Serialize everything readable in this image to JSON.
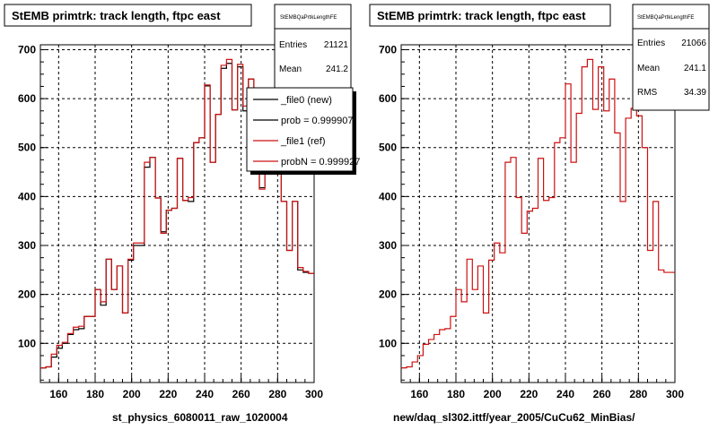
{
  "colors": {
    "ref": "#cc1111",
    "new": "#000000",
    "grid": "#000000"
  },
  "plots": [
    {
      "title": "StEMB primtrk: track length, ftpc east",
      "stats_name": "StEMBQaPrtkLengthFE",
      "stats": [
        {
          "label": "Entries",
          "value": "21121"
        },
        {
          "label": "Mean",
          "value": "241.2"
        }
      ],
      "xlabel": "st_physics_6080011_raw_1020004",
      "legend": [
        {
          "label": "_file0 (new)",
          "color": "#000000"
        },
        {
          "label": "prob = 0.999907",
          "color": "#000000"
        },
        {
          "label": "_file1 (ref)",
          "color": "#cc1111"
        },
        {
          "label": "probN = 0.999927",
          "color": "#cc1111"
        }
      ]
    },
    {
      "title": "StEMB primtrk: track length, ftpc east",
      "stats_name": "StEMBQaPrtkLengthFE",
      "stats": [
        {
          "label": "Entries",
          "value": "21066"
        },
        {
          "label": "Mean",
          "value": "241.1"
        },
        {
          "label": "RMS",
          "value": "34.39"
        }
      ],
      "xlabel": "new/daq_sl302.ittf/year_2005/CuCu62_MinBias/",
      "legend": []
    }
  ],
  "chart_data": [
    {
      "type": "step",
      "title": "StEMB primtrk: track length, ftpc east",
      "xlabel": "st_physics_6080011_raw_1020004",
      "ylabel": "",
      "xlim": [
        150,
        300
      ],
      "ylim": [
        20,
        710
      ],
      "xticks": [
        160,
        180,
        200,
        220,
        240,
        260,
        280,
        300
      ],
      "yticks": [
        100,
        200,
        300,
        400,
        500,
        600,
        700
      ],
      "bin_edges": [
        150,
        153,
        156,
        159,
        162,
        165,
        168,
        171,
        174,
        177,
        180,
        183,
        186,
        189,
        192,
        195,
        198,
        201,
        204,
        207,
        210,
        213,
        216,
        219,
        222,
        225,
        228,
        231,
        234,
        237,
        240,
        243,
        246,
        249,
        252,
        255,
        258,
        261,
        264,
        267,
        270,
        273,
        276,
        279,
        282,
        285,
        288,
        291,
        294,
        297,
        300
      ],
      "series": [
        {
          "name": "_file0 (new)",
          "values": [
            50,
            52,
            72,
            90,
            100,
            118,
            128,
            130,
            155,
            155,
            210,
            178,
            272,
            210,
            258,
            162,
            270,
            300,
            300,
            460,
            480,
            397,
            328,
            372,
            376,
            478,
            392,
            390,
            510,
            520,
            626,
            470,
            568,
            662,
            672,
            577,
            665,
            575,
            640,
            462,
            418,
            575,
            570,
            530,
            390,
            290,
            390,
            250,
            245,
            243
          ]
        },
        {
          "name": "_file1 (ref)",
          "values": [
            50,
            52,
            78,
            96,
            102,
            120,
            133,
            135,
            155,
            155,
            210,
            185,
            272,
            210,
            258,
            162,
            272,
            305,
            305,
            470,
            480,
            397,
            325,
            372,
            376,
            478,
            392,
            398,
            510,
            520,
            628,
            470,
            568,
            668,
            680,
            577,
            670,
            585,
            640,
            470,
            415,
            575,
            575,
            530,
            390,
            290,
            390,
            255,
            247,
            243
          ]
        }
      ]
    },
    {
      "type": "step",
      "title": "StEMB primtrk: track length, ftpc east",
      "xlabel": "new/daq_sl302.ittf/year_2005/CuCu62_MinBias/",
      "ylabel": "",
      "xlim": [
        150,
        300
      ],
      "ylim": [
        20,
        710
      ],
      "xticks": [
        160,
        180,
        200,
        220,
        240,
        260,
        280,
        300
      ],
      "yticks": [
        100,
        200,
        300,
        400,
        500,
        600,
        700
      ],
      "bin_edges": [
        150,
        153,
        156,
        159,
        162,
        165,
        168,
        171,
        174,
        177,
        180,
        183,
        186,
        189,
        192,
        195,
        198,
        201,
        204,
        207,
        210,
        213,
        216,
        219,
        222,
        225,
        228,
        231,
        234,
        237,
        240,
        243,
        246,
        249,
        252,
        255,
        258,
        261,
        264,
        267,
        270,
        273,
        276,
        279,
        282,
        285,
        288,
        291,
        294,
        297,
        300
      ],
      "series": [
        {
          "name": "_file1 (ref)",
          "values": [
            50,
            52,
            62,
            75,
            98,
            108,
            118,
            128,
            130,
            155,
            210,
            185,
            272,
            210,
            258,
            162,
            270,
            305,
            285,
            470,
            480,
            398,
            325,
            370,
            376,
            478,
            392,
            398,
            510,
            520,
            630,
            470,
            570,
            665,
            680,
            578,
            665,
            575,
            640,
            530,
            390,
            560,
            580,
            565,
            500,
            290,
            390,
            250,
            245,
            245
          ]
        }
      ]
    }
  ]
}
